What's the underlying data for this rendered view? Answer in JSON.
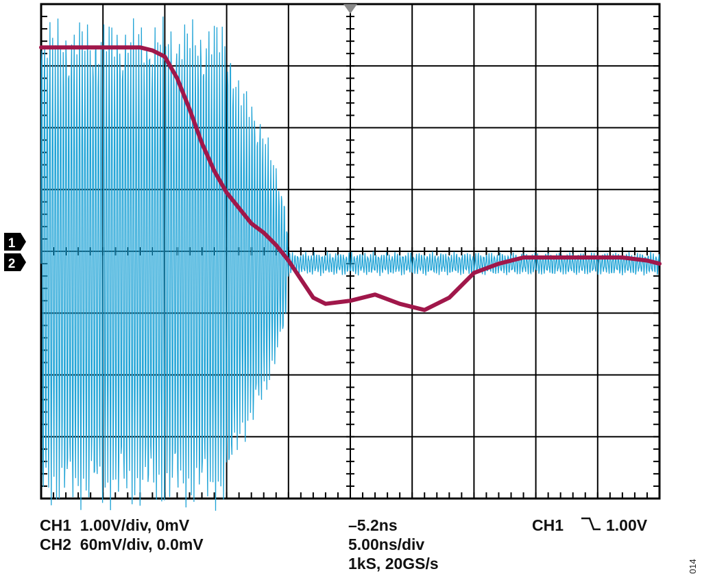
{
  "chart_data": {
    "type": "line",
    "title": "",
    "xlabel": "",
    "ylabel": "",
    "grid": true,
    "divisions": {
      "horizontal": 10,
      "vertical": 8
    },
    "x_unit": "ns",
    "x_per_div": 5.0,
    "xlim": [
      -25.2,
      24.8
    ],
    "trigger_time_ns": -5.2,
    "series": [
      {
        "name": "CH1",
        "color": "#a0174a",
        "v_per_div": 1.0,
        "offset_mV": 0,
        "x": [
          -25.2,
          -23.2,
          -21.2,
          -19.2,
          -17.2,
          -16.2,
          -15.2,
          -14.2,
          -13.2,
          -12.2,
          -11.2,
          -10.2,
          -9.2,
          -8.2,
          -7.2,
          -6.2,
          -5.2,
          -4.2,
          -3.2,
          -2.2,
          -0.2,
          1.8,
          3.8,
          5.8,
          7.8,
          9.8,
          11.8,
          13.8,
          15.8,
          17.8,
          19.8,
          21.8,
          23.8,
          24.8
        ],
        "y": [
          3.3,
          3.3,
          3.3,
          3.3,
          3.3,
          3.25,
          3.15,
          2.8,
          2.3,
          1.75,
          1.3,
          0.95,
          0.7,
          0.45,
          0.3,
          0.1,
          -0.15,
          -0.45,
          -0.75,
          -0.85,
          -0.8,
          -0.7,
          -0.85,
          -0.95,
          -0.75,
          -0.35,
          -0.2,
          -0.1,
          -0.1,
          -0.1,
          -0.1,
          -0.1,
          -0.15,
          -0.2
        ]
      },
      {
        "name": "CH2",
        "color": "#1fa3d6",
        "v_per_div": 0.06,
        "offset_mV": 0.0,
        "envelope_x": [
          -25.2,
          -18.2,
          -12.2,
          -10.2,
          -9.2,
          -8.2,
          -7.2,
          -6.2,
          -5.4,
          -5.2,
          24.8
        ],
        "envelope_amplitude_div": [
          4.0,
          4.0,
          4.0,
          4.0,
          3.0,
          2.8,
          2.3,
          1.6,
          1.0,
          0.15,
          0.15
        ]
      }
    ]
  },
  "channel_markers": [
    "1",
    "2"
  ],
  "readout": {
    "ch1": "CH1  1.00V/div, 0mV",
    "ch2": "CH2  60mV/div, 0.0mV",
    "trigger_time": "–5.2ns",
    "timebase": "5.00ns/div",
    "samples": "1kS, 20GS/s",
    "trigger_channel": "CH1",
    "trigger_level": "1.00V"
  },
  "figure_number": "014"
}
